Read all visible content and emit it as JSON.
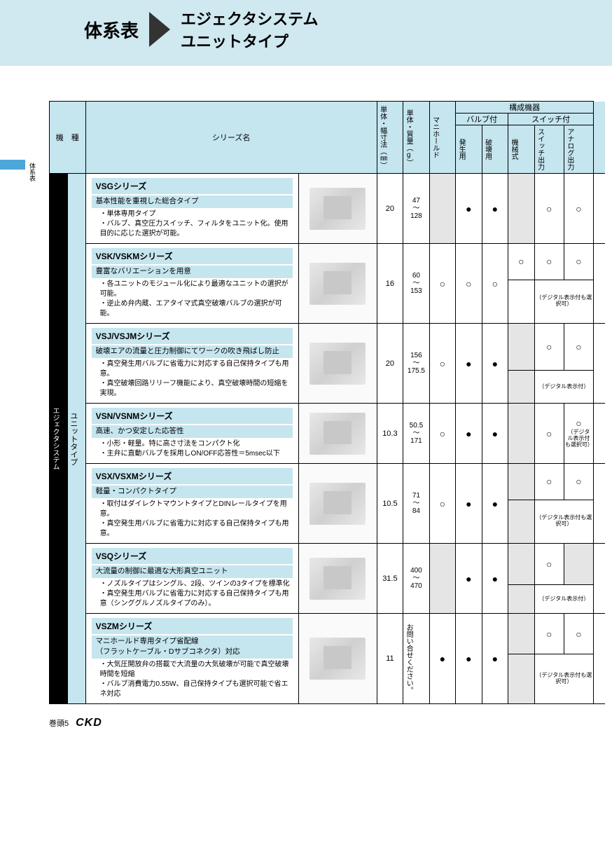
{
  "header": {
    "label": "体系表",
    "title_l1": "エジェクタシステム",
    "title_l2": "ユニットタイプ"
  },
  "side_tab": "体系表",
  "footer": {
    "page": "巻頭5",
    "logo": "CKD"
  },
  "thead": {
    "c_type": "機　種",
    "c_series": "シリーズ名",
    "c_width": "単体・幅寸法（㎜）",
    "c_weight": "単体・質量（g）",
    "c_manifold": "マニホールド",
    "c_components": "構成機器",
    "c_valve": "バルブ付",
    "c_switch": "スイッチ付",
    "c_gen": "発生用",
    "c_break": "破壊用",
    "c_mech": "機械式",
    "c_swout": "スイッチ出力",
    "c_analog": "アナログ出力"
  },
  "vert_main": "エジェクタシステム",
  "vert_sub": "ユニットタイプ",
  "rows": [
    {
      "hdr": "VSGシリーズ",
      "sub": "基本性能を重視した総合タイプ",
      "desc": [
        "・単体専用タイプ",
        "・バルブ、真空圧力スイッチ、フィルタをユニット化。使用目的に応じた選択が可能。"
      ],
      "width": "20",
      "weight_min": "47",
      "weight_max": "128",
      "manifold": "",
      "gen": "●",
      "brk": "●",
      "mech": "",
      "sw": "○",
      "an": "○",
      "note": ""
    },
    {
      "hdr": "VSK/VSKMシリーズ",
      "sub": "豊富なバリエーションを用意",
      "desc": [
        "・各ユニットのモジュール化により最適なユニットの選択が可能。",
        "・逆止め弁内蔵、エアタイマ式真空破壊バルブの選択が可能。"
      ],
      "width": "16",
      "weight_min": "60",
      "weight_max": "153",
      "manifold": "○",
      "gen": "○",
      "brk": "○",
      "mech": "○",
      "sw": "○",
      "an": "○",
      "note": "（デジタル表示付も選択可）"
    },
    {
      "hdr": "VSJ/VSJMシリーズ",
      "sub": "破壊エアの流量と圧力制御にてワークの吹き飛ばし防止",
      "desc": [
        "・真空発生用バルブに省電力に対応する自己保持タイプも用意。",
        "・真空破壊回路リリーフ機能により、真空破壊時間の短縮を実現。"
      ],
      "width": "20",
      "weight_min": "156",
      "weight_max": "175.5",
      "manifold": "○",
      "gen": "●",
      "brk": "●",
      "mech": "",
      "sw": "○",
      "an": "○",
      "note": "（デジタル表示付）"
    },
    {
      "hdr": "VSN/VSNMシリーズ",
      "sub": "高速、かつ安定した応答性",
      "desc": [
        "・小形・軽量。特に高さ寸法をコンパクト化",
        "・主弁に直動バルブを採用しON/OFF応答性＝5msec以下"
      ],
      "width": "10.3",
      "weight_min": "50.5",
      "weight_max": "171",
      "manifold": "○",
      "gen": "●",
      "brk": "●",
      "mech": "",
      "sw": "○",
      "an": "○",
      "an_note": "（デジタル表示付も選択可）",
      "note": ""
    },
    {
      "hdr": "VSX/VSXMシリーズ",
      "sub": "軽量・コンパクトタイプ",
      "desc": [
        "・取付はダイレクトマウントタイプとDINレールタイプを用意。",
        "・真空発生用バルブに省電力に対応する自己保持タイプも用意。"
      ],
      "width": "10.5",
      "weight_min": "71",
      "weight_max": "84",
      "manifold": "○",
      "gen": "●",
      "brk": "●",
      "mech": "",
      "sw": "○",
      "an": "○",
      "note": "（デジタル表示付も選択可）"
    },
    {
      "hdr": "VSQシリーズ",
      "sub": "大流量の制御に最適な大形真空ユニット",
      "desc": [
        "・ノズルタイプはシングル、2段、ツインの3タイプを標準化",
        "・真空発生用バルブに省電力に対応する自己保持タイプも用意（シンググルノズルタイプのみ）。"
      ],
      "width": "31.5",
      "weight_min": "400",
      "weight_max": "470",
      "manifold": "",
      "gen": "●",
      "brk": "●",
      "mech": "",
      "sw": "○",
      "an": "",
      "note": "（デジタル表示付）"
    },
    {
      "hdr": "VSZMシリーズ",
      "sub": "マニホールド専用タイプ省配線\n（フラットケーブル・Dサブコネクタ）対応",
      "desc": [
        "・大気圧開放弁の搭載で大流量の大気破壊が可能で真空破壊時間を短縮",
        "・バルブ消費電力0.55W、自己保持タイプも選択可能で省エネ対応"
      ],
      "width": "11",
      "weight_text": "お問い合せください。",
      "manifold": "●",
      "gen": "●",
      "brk": "●",
      "mech": "",
      "sw": "○",
      "an": "○",
      "note": "（デジタル表示付も選択可）"
    }
  ],
  "colors": {
    "header_bg": "#d0e8f0",
    "th_bg": "#c5e5ef",
    "gray": "#e5e5e5",
    "accent": "#4da6d9"
  }
}
